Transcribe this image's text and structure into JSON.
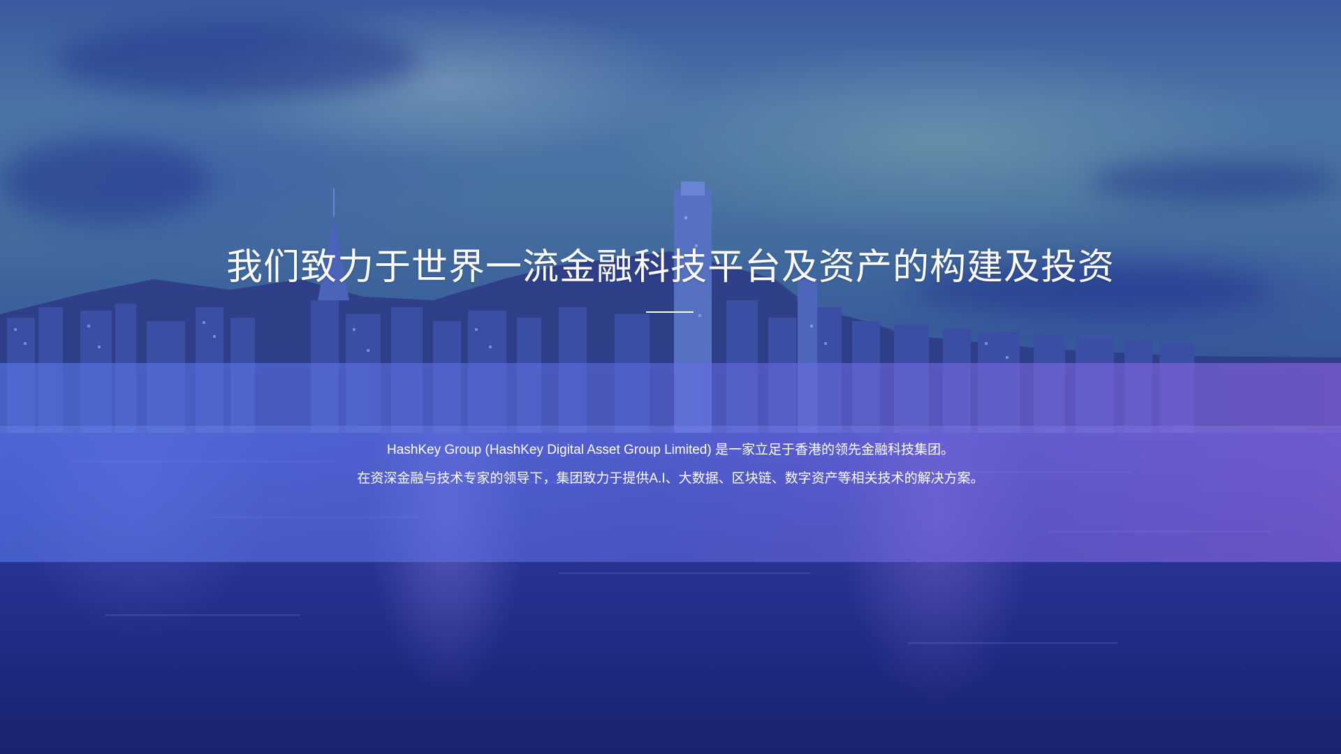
{
  "hero": {
    "headline": "我们致力于世界一流金融科技平台及资产的构建及投资",
    "description_line1": "HashKey Group (HashKey Digital Asset Group Limited) 是一家立足于香港的领先金融科技集团。",
    "description_line2": "在资深金融与技术专家的领导下，集团致力于提供A.I、大数据、区块链、数字资产等相关技术的解决方案。"
  },
  "colors": {
    "band_left": "#5878eb",
    "band_right": "#8c64e1",
    "water_deep": "#1a236e",
    "sky": "#4a74a6"
  }
}
